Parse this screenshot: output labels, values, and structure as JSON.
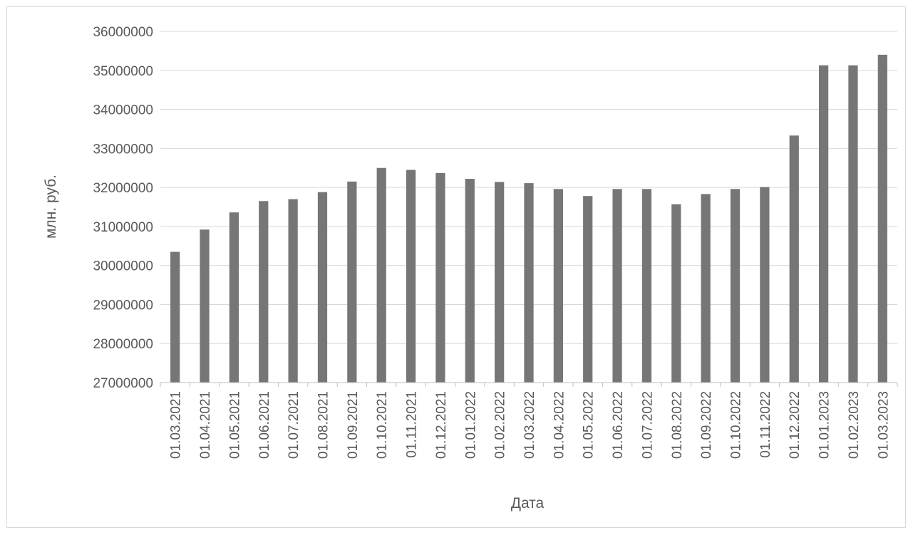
{
  "chart_data": {
    "type": "bar",
    "title": "",
    "xlabel": "Дата",
    "ylabel": "млн. руб.",
    "ylim": [
      27000000,
      36000000
    ],
    "ytick_step": 1000000,
    "ytick_labels": [
      "27000000",
      "28000000",
      "29000000",
      "30000000",
      "31000000",
      "32000000",
      "33000000",
      "34000000",
      "35000000",
      "36000000"
    ],
    "grid": true,
    "legend": "none",
    "bar_color": "#767676",
    "categories": [
      "01.03.2021",
      "01.04.2021",
      "01.05.2021",
      "01.06.2021",
      "01.07.2021",
      "01.08.2021",
      "01.09.2021",
      "01.10.2021",
      "01.11.2021",
      "01.12.2021",
      "01.01.2022",
      "01.02.2022",
      "01.03.2022",
      "01.04.2022",
      "01.05.2022",
      "01.06.2022",
      "01.07.2022",
      "01.08.2022",
      "01.09.2022",
      "01.10.2022",
      "01.11.2022",
      "01.12.2022",
      "01.01.2023",
      "01.02.2023",
      "01.03.2023"
    ],
    "values": [
      30350000,
      30920000,
      31360000,
      31650000,
      31700000,
      31880000,
      32150000,
      32500000,
      32450000,
      32370000,
      32220000,
      32140000,
      32110000,
      31960000,
      31780000,
      31960000,
      31960000,
      31570000,
      31830000,
      31960000,
      32010000,
      33330000,
      35130000,
      35130000,
      35400000
    ]
  }
}
